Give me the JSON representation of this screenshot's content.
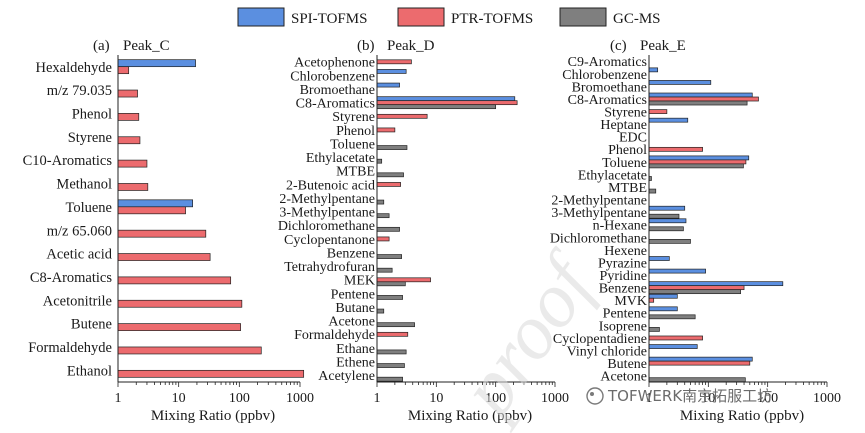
{
  "legend": {
    "position": "top-center",
    "items": [
      {
        "name": "SPI-TOFMS",
        "color": "#5b8fe0"
      },
      {
        "name": "PTR-TOFMS",
        "color": "#ec6b6e"
      },
      {
        "name": "GC-MS",
        "color": "#7f7f7f"
      }
    ]
  },
  "watermark": {
    "proof": "proof",
    "brand": "TOFWERK南京拓服工坊"
  },
  "chart_data": [
    {
      "type": "bar",
      "orientation": "horizontal",
      "panel_label": "(a)",
      "title": "Peak_C",
      "xlabel": "Mixing Ratio (ppbv)",
      "xscale": "log",
      "xlim": [
        1,
        1000
      ],
      "xticks": [
        "1",
        "10",
        "100",
        "1000"
      ],
      "categories": [
        "Hexaldehyde",
        "m/z 79.035",
        "Phenol",
        "Styrene",
        "C10-Aromatics",
        "Methanol",
        "Toluene",
        "m/z 65.060",
        "Acetic acid",
        "C8-Aromatics",
        "Acetonitrile",
        "Butene",
        "Formaldehyde",
        "Ethanol"
      ],
      "series": [
        {
          "name": "SPI-TOFMS",
          "values": [
            19,
            null,
            null,
            null,
            null,
            null,
            17,
            null,
            null,
            null,
            null,
            null,
            null,
            null
          ]
        },
        {
          "name": "PTR-TOFMS",
          "values": [
            1.5,
            2.1,
            2.2,
            2.3,
            3.0,
            3.1,
            13,
            28,
            33,
            72,
            110,
            105,
            230,
            1150
          ]
        }
      ]
    },
    {
      "type": "bar",
      "orientation": "horizontal",
      "panel_label": "(b)",
      "title": "Peak_D",
      "xlabel": "Mixing Ratio (ppbv)",
      "xscale": "log",
      "xlim": [
        1,
        1000
      ],
      "xticks": [
        "1",
        "10",
        "100",
        "1000"
      ],
      "categories": [
        "Acetophenone",
        "Chlorobenzene",
        "Bromoethane",
        "C8-Aromatics",
        "Styrene",
        "Phenol",
        "Toluene",
        "Ethylacetate",
        "MTBE",
        "2-Butenoic acid",
        "2-Methylpentane",
        "3-Methylpentane",
        "Dichloromethane",
        "Cyclopentanone",
        "Benzene",
        "Tetrahydrofuran",
        "MEK",
        "Pentene",
        "Butane",
        "Acetone",
        "Formaldehyde",
        "Ethane",
        "Ethene",
        "Acetylene"
      ],
      "series": [
        {
          "name": "SPI-TOFMS",
          "values": [
            null,
            3.1,
            2.4,
            210,
            null,
            null,
            null,
            null,
            null,
            null,
            null,
            null,
            null,
            null,
            null,
            null,
            null,
            null,
            null,
            null,
            null,
            null,
            null,
            null
          ]
        },
        {
          "name": "PTR-TOFMS",
          "values": [
            3.8,
            null,
            null,
            230,
            7,
            2.0,
            null,
            null,
            null,
            2.5,
            null,
            null,
            null,
            1.6,
            null,
            null,
            8,
            null,
            null,
            null,
            3.3,
            null,
            null,
            null
          ]
        },
        {
          "name": "GC-MS",
          "values": [
            null,
            null,
            null,
            100,
            null,
            null,
            3.2,
            1.2,
            2.8,
            null,
            1.3,
            1.6,
            2.4,
            null,
            2.6,
            1.8,
            3.0,
            2.7,
            1.3,
            4.3,
            null,
            3.1,
            2.9,
            2.7
          ]
        }
      ]
    },
    {
      "type": "bar",
      "orientation": "horizontal",
      "panel_label": "(c)",
      "title": "Peak_E",
      "xlabel": "Mixing Ratio (ppbv)",
      "xscale": "log",
      "xlim": [
        1,
        1000
      ],
      "xticks": [
        "1",
        "10",
        "100",
        "1000"
      ],
      "categories": [
        "C9-Aromatics",
        "Chlorobenzene",
        "Bromoethane",
        "C8-Aromatics",
        "Styrene",
        "Heptane",
        "EDC",
        "Phenol",
        "Toluene",
        "Ethylacetate",
        "MTBE",
        "2-Methylpentane",
        "3-Methylpentane",
        "n-Hexane",
        "Dichloromethane",
        "Hexene",
        "Pyrazine",
        "Pyridine",
        "Benzene",
        "MVK",
        "Pentene",
        "Isoprene",
        "Cyclopentadiene",
        "Vinyl chloride",
        "Butene",
        "Acetone"
      ],
      "series": [
        {
          "name": "SPI-TOFMS",
          "values": [
            null,
            1.4,
            11,
            55,
            null,
            4.5,
            null,
            null,
            48,
            null,
            null,
            null,
            4.0,
            4.2,
            null,
            null,
            2.2,
            9,
            180,
            3.0,
            3.0,
            null,
            null,
            6.5,
            55,
            null
          ]
        },
        {
          "name": "PTR-TOFMS",
          "values": [
            null,
            null,
            null,
            70,
            2.0,
            null,
            null,
            8,
            43,
            null,
            null,
            null,
            null,
            null,
            null,
            null,
            null,
            null,
            40,
            1.2,
            null,
            null,
            8,
            null,
            50,
            null
          ]
        },
        {
          "name": "GC-MS",
          "values": [
            null,
            null,
            null,
            45,
            null,
            null,
            null,
            null,
            39,
            1.1,
            1.3,
            null,
            3.2,
            3.8,
            5.0,
            null,
            null,
            null,
            35,
            null,
            6.0,
            1.5,
            null,
            null,
            null,
            42
          ]
        }
      ]
    }
  ]
}
